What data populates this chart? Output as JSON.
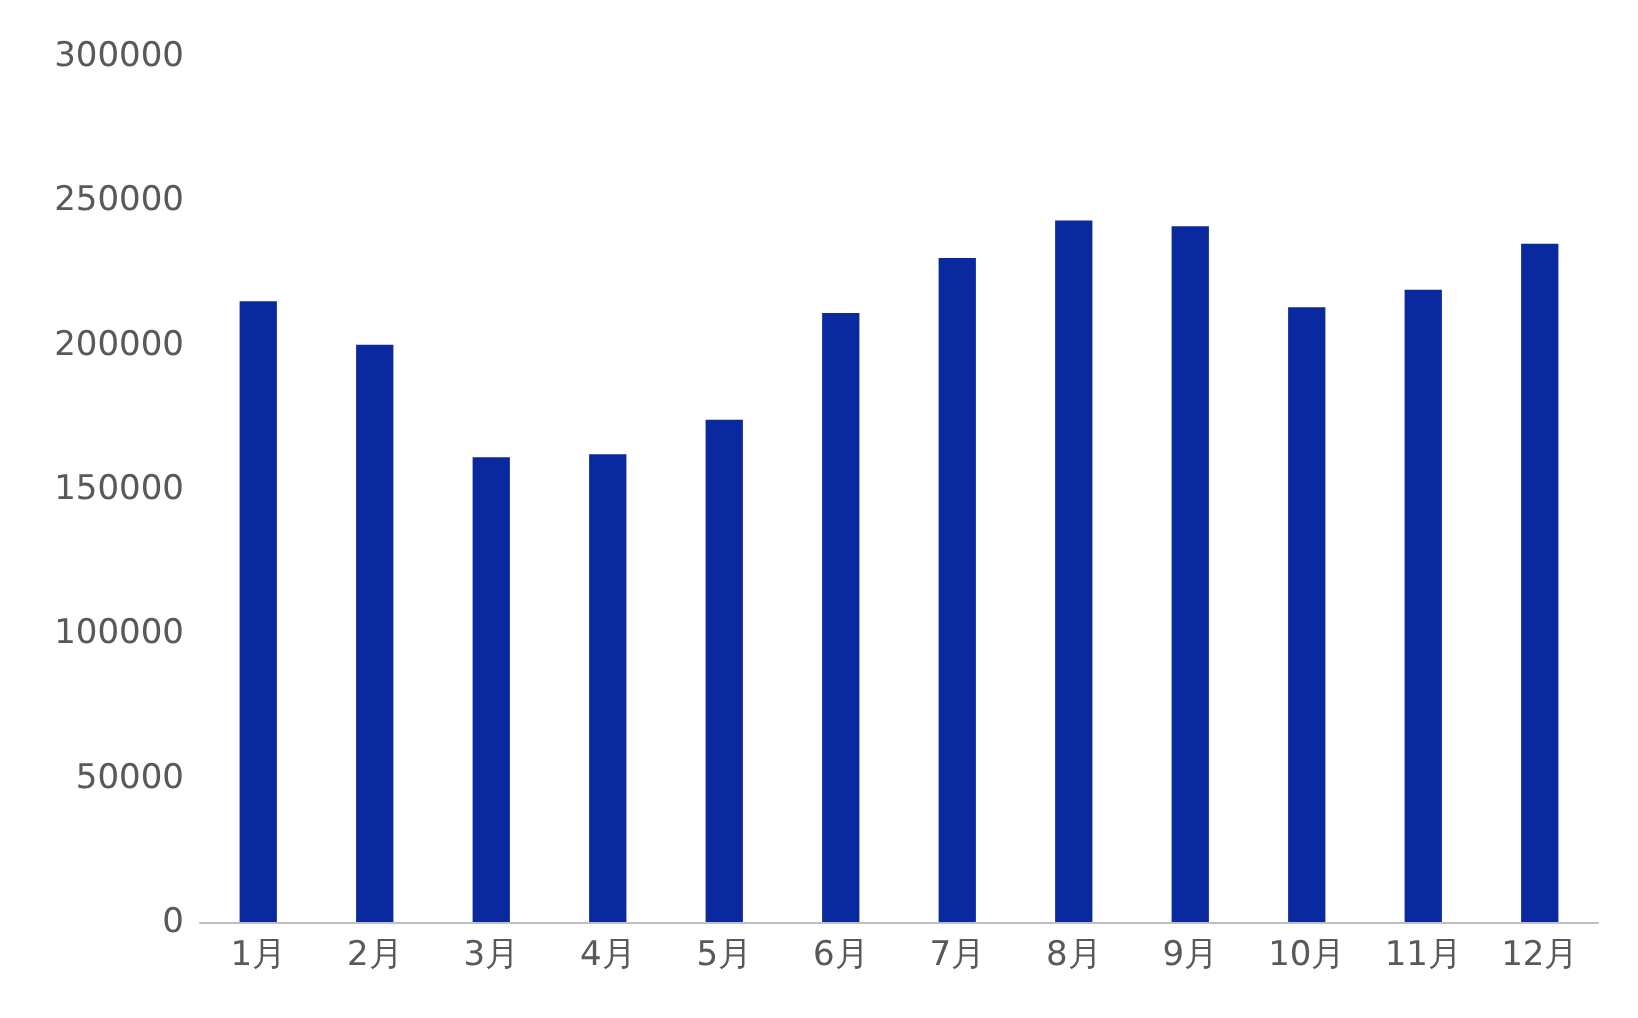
{
  "chart_data": {
    "type": "bar",
    "categories": [
      "1月",
      "2月",
      "3月",
      "4月",
      "5月",
      "6月",
      "7月",
      "8月",
      "9月",
      "10月",
      "11月",
      "12月"
    ],
    "values": [
      215000,
      200000,
      161000,
      162000,
      174000,
      211000,
      230000,
      243000,
      241000,
      213000,
      219000,
      235000
    ],
    "color": "#0a299f",
    "ylim": [
      0,
      300000
    ],
    "yticks": [
      0,
      50000,
      100000,
      150000,
      200000,
      250000,
      300000
    ],
    "grid": false
  }
}
